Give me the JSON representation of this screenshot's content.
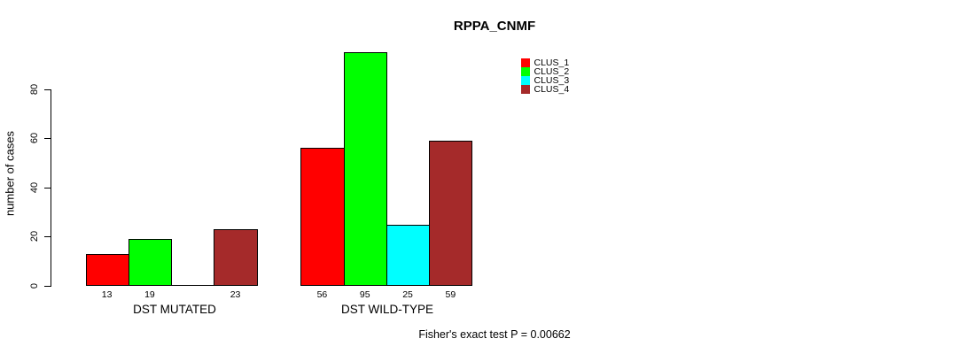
{
  "chart_data": {
    "type": "bar",
    "title": "RPPA_CNMF",
    "ylabel": "number of cases",
    "xlabel": "",
    "ylim": [
      0,
      80
    ],
    "yticks": [
      0,
      20,
      40,
      60,
      80
    ],
    "grid": false,
    "legend_position": "top-right",
    "categories": [
      "DST MUTATED",
      "DST WILD-TYPE"
    ],
    "series": [
      {
        "name": "CLUS_1",
        "color": "#ff0000",
        "values": [
          13,
          56
        ]
      },
      {
        "name": "CLUS_2",
        "color": "#00ff00",
        "values": [
          19,
          95
        ]
      },
      {
        "name": "CLUS_3",
        "color": "#00ffff",
        "values": [
          0,
          25
        ]
      },
      {
        "name": "CLUS_4",
        "color": "#a52a2a",
        "values": [
          23,
          59
        ]
      }
    ],
    "bar_value_labels": [
      [
        "13",
        "19",
        "",
        "23"
      ],
      [
        "56",
        "95",
        "25",
        "59"
      ]
    ],
    "annotation": "Fisher's exact test P = 0.00662",
    "colors": {
      "background": "#ffffff",
      "axis": "#000000",
      "text": "#000000"
    }
  }
}
